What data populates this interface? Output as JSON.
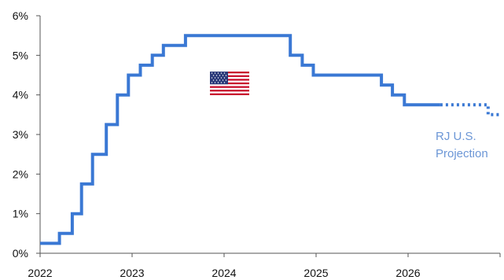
{
  "chart_data": {
    "type": "line",
    "title": "",
    "xlabel": "",
    "ylabel": "",
    "xlim": [
      2022.0,
      2027.0
    ],
    "ylim": [
      0,
      6
    ],
    "x_ticks": [
      {
        "value": 2022,
        "label": "2022"
      },
      {
        "value": 2023,
        "label": "2023"
      },
      {
        "value": 2024,
        "label": "2024"
      },
      {
        "value": 2025,
        "label": "2025"
      },
      {
        "value": 2026,
        "label": "2026"
      }
    ],
    "y_ticks": [
      {
        "value": 0,
        "label": "0%"
      },
      {
        "value": 1,
        "label": "1%"
      },
      {
        "value": 2,
        "label": "2%"
      },
      {
        "value": 3,
        "label": "3%"
      },
      {
        "value": 4,
        "label": "4%"
      },
      {
        "value": 5,
        "label": "5%"
      },
      {
        "value": 6,
        "label": "6%"
      }
    ],
    "grid": false,
    "series": [
      {
        "style": "solid",
        "color": "#3a78d4",
        "step": true,
        "points": [
          [
            2022.0,
            0.25
          ],
          [
            2022.21,
            0.5
          ],
          [
            2022.35,
            1.0
          ],
          [
            2022.45,
            1.75
          ],
          [
            2022.57,
            2.5
          ],
          [
            2022.72,
            3.25
          ],
          [
            2022.84,
            4.0
          ],
          [
            2022.96,
            4.5
          ],
          [
            2023.09,
            4.75
          ],
          [
            2023.22,
            5.0
          ],
          [
            2023.34,
            5.25
          ],
          [
            2023.58,
            5.5
          ],
          [
            2024.72,
            5.0
          ],
          [
            2024.85,
            4.75
          ],
          [
            2024.97,
            4.5
          ],
          [
            2025.71,
            4.25
          ],
          [
            2025.83,
            4.0
          ],
          [
            2025.96,
            3.75
          ],
          [
            2026.35,
            3.75
          ]
        ]
      },
      {
        "name": "RJ U.S. Projection",
        "style": "dotted",
        "color": "#3a78d4",
        "step": true,
        "points": [
          [
            2026.35,
            3.75
          ],
          [
            2026.87,
            3.5
          ],
          [
            2027.0,
            3.5
          ]
        ]
      }
    ],
    "annotation": {
      "lines": [
        "RJ U.S.",
        "Projection"
      ],
      "color": "#6b96d6"
    },
    "flag_icon": "us-flag-icon"
  }
}
